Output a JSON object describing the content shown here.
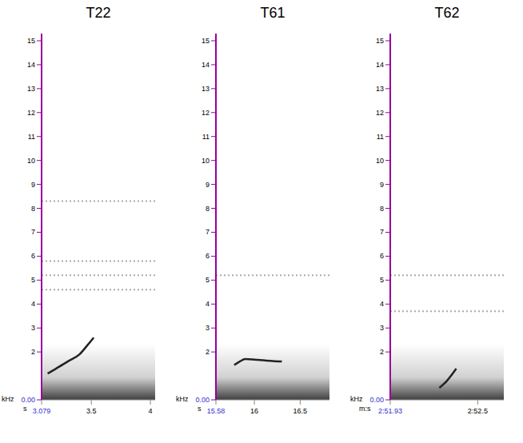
{
  "chart_data": [
    {
      "type": "line",
      "title": "T22",
      "x_label": "s",
      "y_label": "kHz",
      "color": "#222222",
      "x": [
        3.13,
        3.2,
        3.3,
        3.4,
        3.47,
        3.52
      ],
      "values": [
        1.1,
        1.3,
        1.6,
        1.9,
        2.3,
        2.6
      ],
      "bands": [
        8.3,
        5.8,
        5.2,
        4.6
      ],
      "xlim": [
        3.079,
        4.04
      ],
      "xticks": [
        {
          "value": 3.079,
          "label": "3.079"
        },
        3.5,
        4
      ],
      "ylim": [
        0,
        15.3
      ],
      "yticks": [
        {
          "value": 0,
          "label": "0.00"
        },
        2,
        3,
        4,
        5,
        6,
        7,
        8,
        9,
        10,
        11,
        12,
        13,
        14,
        15
      ]
    },
    {
      "type": "line",
      "title": "T61",
      "x_label": "s",
      "y_label": "kHz",
      "color": "#222222",
      "x": [
        15.78,
        15.84,
        15.9,
        16.0,
        16.1,
        16.2,
        16.3
      ],
      "values": [
        1.45,
        1.6,
        1.7,
        1.68,
        1.65,
        1.62,
        1.6
      ],
      "bands": [
        5.2
      ],
      "xlim": [
        15.58,
        16.82
      ],
      "xticks": [
        {
          "value": 15.58,
          "label": "15.58"
        },
        16,
        16.5
      ],
      "ylim": [
        0,
        15.3
      ],
      "yticks": [
        {
          "value": 0,
          "label": "0.00"
        },
        2,
        3,
        4,
        5,
        6,
        7,
        8,
        9,
        10,
        11,
        12,
        13,
        14,
        15
      ]
    },
    {
      "type": "line",
      "title": "T62",
      "x_label": "m:s",
      "y_label": "kHz",
      "color": "#222222",
      "x": [
        172.25,
        172.3,
        172.36
      ],
      "values": [
        0.5,
        0.8,
        1.3
      ],
      "bands": [
        5.2,
        3.7
      ],
      "xlim": [
        171.93,
        172.67
      ],
      "xticks": [
        {
          "value": 171.93,
          "label": "2:51.93"
        },
        {
          "value": 172.5,
          "label": "2:52.5"
        }
      ],
      "ylim": [
        0,
        15.3
      ],
      "yticks": [
        {
          "value": 0,
          "label": "0.00"
        },
        2,
        3,
        4,
        5,
        6,
        7,
        8,
        9,
        10,
        11,
        12,
        13,
        14,
        15
      ]
    }
  ]
}
